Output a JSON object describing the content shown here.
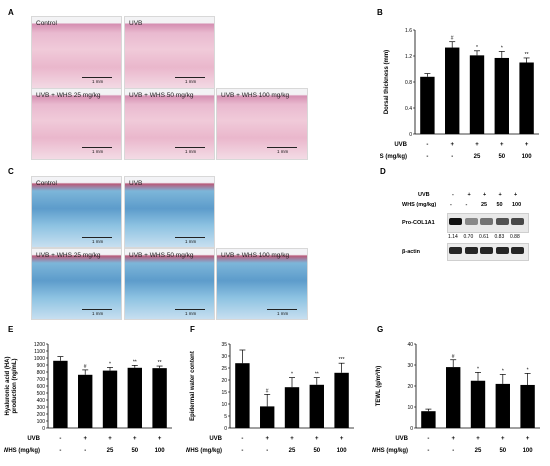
{
  "panels": {
    "A": {
      "letter": "A",
      "images": [
        {
          "caption": "Control",
          "scale": "1 mm"
        },
        {
          "caption": "UVB",
          "scale": "1 mm"
        },
        {
          "caption": "UVB + WHS 25 mg/kg",
          "scale": "1 mm"
        },
        {
          "caption": "UVB + WHS 50 mg/kg",
          "scale": "1 mm"
        },
        {
          "caption": "UVB + WHS 100 mg/kg",
          "scale": "1 mm"
        }
      ]
    },
    "C": {
      "letter": "C",
      "images": [
        {
          "caption": "Control",
          "scale": "1 mm"
        },
        {
          "caption": "UVB",
          "scale": "1 mm"
        },
        {
          "caption": "UVB + WHS 25 mg/kg",
          "scale": "1 mm"
        },
        {
          "caption": "UVB + WHS 50 mg/kg",
          "scale": "1 mm"
        },
        {
          "caption": "UVB + WHS 100 mg/kg",
          "scale": "1 mm"
        }
      ]
    },
    "D": {
      "letter": "D",
      "uvb_label": "UVB",
      "whs_label": "WHS (mg/kg)",
      "uvb_values": [
        "-",
        "+",
        "+",
        "+",
        "+"
      ],
      "whs_values": [
        "-",
        "-",
        "25",
        "50",
        "100"
      ],
      "rows": [
        {
          "label": "Pro-COL1A1",
          "intensities": [
            1.0,
            0.45,
            0.55,
            0.7,
            0.75
          ]
        },
        {
          "label": "β-actin",
          "intensities": [
            0.9,
            0.9,
            0.9,
            0.9,
            0.9
          ]
        }
      ],
      "ratios": [
        "1.14",
        "0.70",
        "0.61",
        "0.83",
        "0.88"
      ]
    }
  },
  "treatment_rows": {
    "uvb_label": "UVB",
    "whs_label": "WHS (mg/kg)",
    "uvb": [
      "-",
      "+",
      "+",
      "+",
      "+"
    ],
    "whs": [
      "-",
      "-",
      "25",
      "50",
      "100"
    ]
  },
  "chart_data": [
    {
      "id": "B",
      "letter": "B",
      "type": "bar",
      "categories": [
        "1",
        "2",
        "3",
        "4",
        "5"
      ],
      "values": [
        0.88,
        1.33,
        1.21,
        1.17,
        1.1
      ],
      "errors": [
        0.05,
        0.09,
        0.07,
        0.1,
        0.07
      ],
      "significance": [
        "",
        "#",
        "*",
        "*",
        "**"
      ],
      "ylabel": "Dorsal thickness (mm)",
      "ylim": [
        0,
        1.6
      ],
      "yticks": [
        "0",
        "0.4",
        "0.8",
        "1.2",
        "1.6"
      ]
    },
    {
      "id": "E",
      "letter": "E",
      "type": "bar",
      "categories": [
        "1",
        "2",
        "3",
        "4",
        "5"
      ],
      "values": [
        960,
        760,
        820,
        860,
        855
      ],
      "errors": [
        60,
        70,
        45,
        35,
        30
      ],
      "significance": [
        "",
        "#",
        "*",
        "**",
        "**"
      ],
      "ylabel": "Hyaluronic acid (HA) production (ng/mL)",
      "ylim": [
        0,
        1200
      ],
      "yticks": [
        "0",
        "100",
        "200",
        "300",
        "400",
        "500",
        "600",
        "700",
        "800",
        "900",
        "1000",
        "1100",
        "1200"
      ]
    },
    {
      "id": "F",
      "letter": "F",
      "type": "bar",
      "categories": [
        "1",
        "2",
        "3",
        "4",
        "5"
      ],
      "values": [
        27,
        9,
        17,
        18,
        23
      ],
      "errors": [
        5.5,
        5,
        4,
        3,
        4
      ],
      "significance": [
        "",
        "#",
        "*",
        "**",
        "***"
      ],
      "ylabel": "Epidermal water content",
      "ylim": [
        0,
        35
      ],
      "yticks": [
        "0",
        "5",
        "10",
        "15",
        "20",
        "25",
        "30",
        "35"
      ]
    },
    {
      "id": "G",
      "letter": "G",
      "type": "bar",
      "categories": [
        "1",
        "2",
        "3",
        "4",
        "5"
      ],
      "values": [
        8,
        29,
        22.5,
        21,
        20.5
      ],
      "errors": [
        1,
        3.5,
        4,
        4.5,
        5.5
      ],
      "significance": [
        "",
        "#",
        "*",
        "*",
        "*"
      ],
      "ylabel": "TEWL (g/m²/h)",
      "ylim": [
        0,
        40
      ],
      "yticks": [
        "0",
        "10",
        "20",
        "30",
        "40"
      ]
    }
  ]
}
